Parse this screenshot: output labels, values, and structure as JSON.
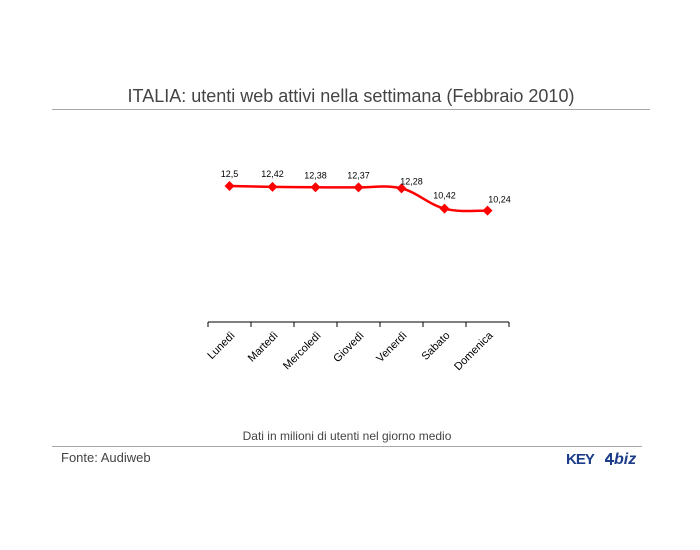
{
  "title": "ITALIA: utenti web attivi nella settimana (Febbraio 2010)",
  "note": "Dati in milioni di utenti nel giorno medio",
  "source": "Fonte: Audiweb",
  "logo": {
    "key_text": "KEY",
    "biz_text": "biz"
  },
  "colors": {
    "line": "#ff0000",
    "axis": "#000000",
    "text": "#444444",
    "logo": "#1d3d8a"
  },
  "chart_data": {
    "type": "line",
    "categories": [
      "Lunedì",
      "Martedì",
      "Mercoledì",
      "Giovedì",
      "Venerdì",
      "Sabato",
      "Domenica"
    ],
    "series": [
      {
        "values": [
          12.5,
          12.42,
          12.38,
          12.37,
          12.28,
          10.42,
          10.24
        ]
      }
    ],
    "data_labels": [
      "12,5",
      "12,42",
      "12,38",
      "12,37",
      "12,28",
      "10,42",
      "10,24"
    ],
    "marker": "diamond",
    "smooth": true,
    "grid": false,
    "legend": "none"
  }
}
